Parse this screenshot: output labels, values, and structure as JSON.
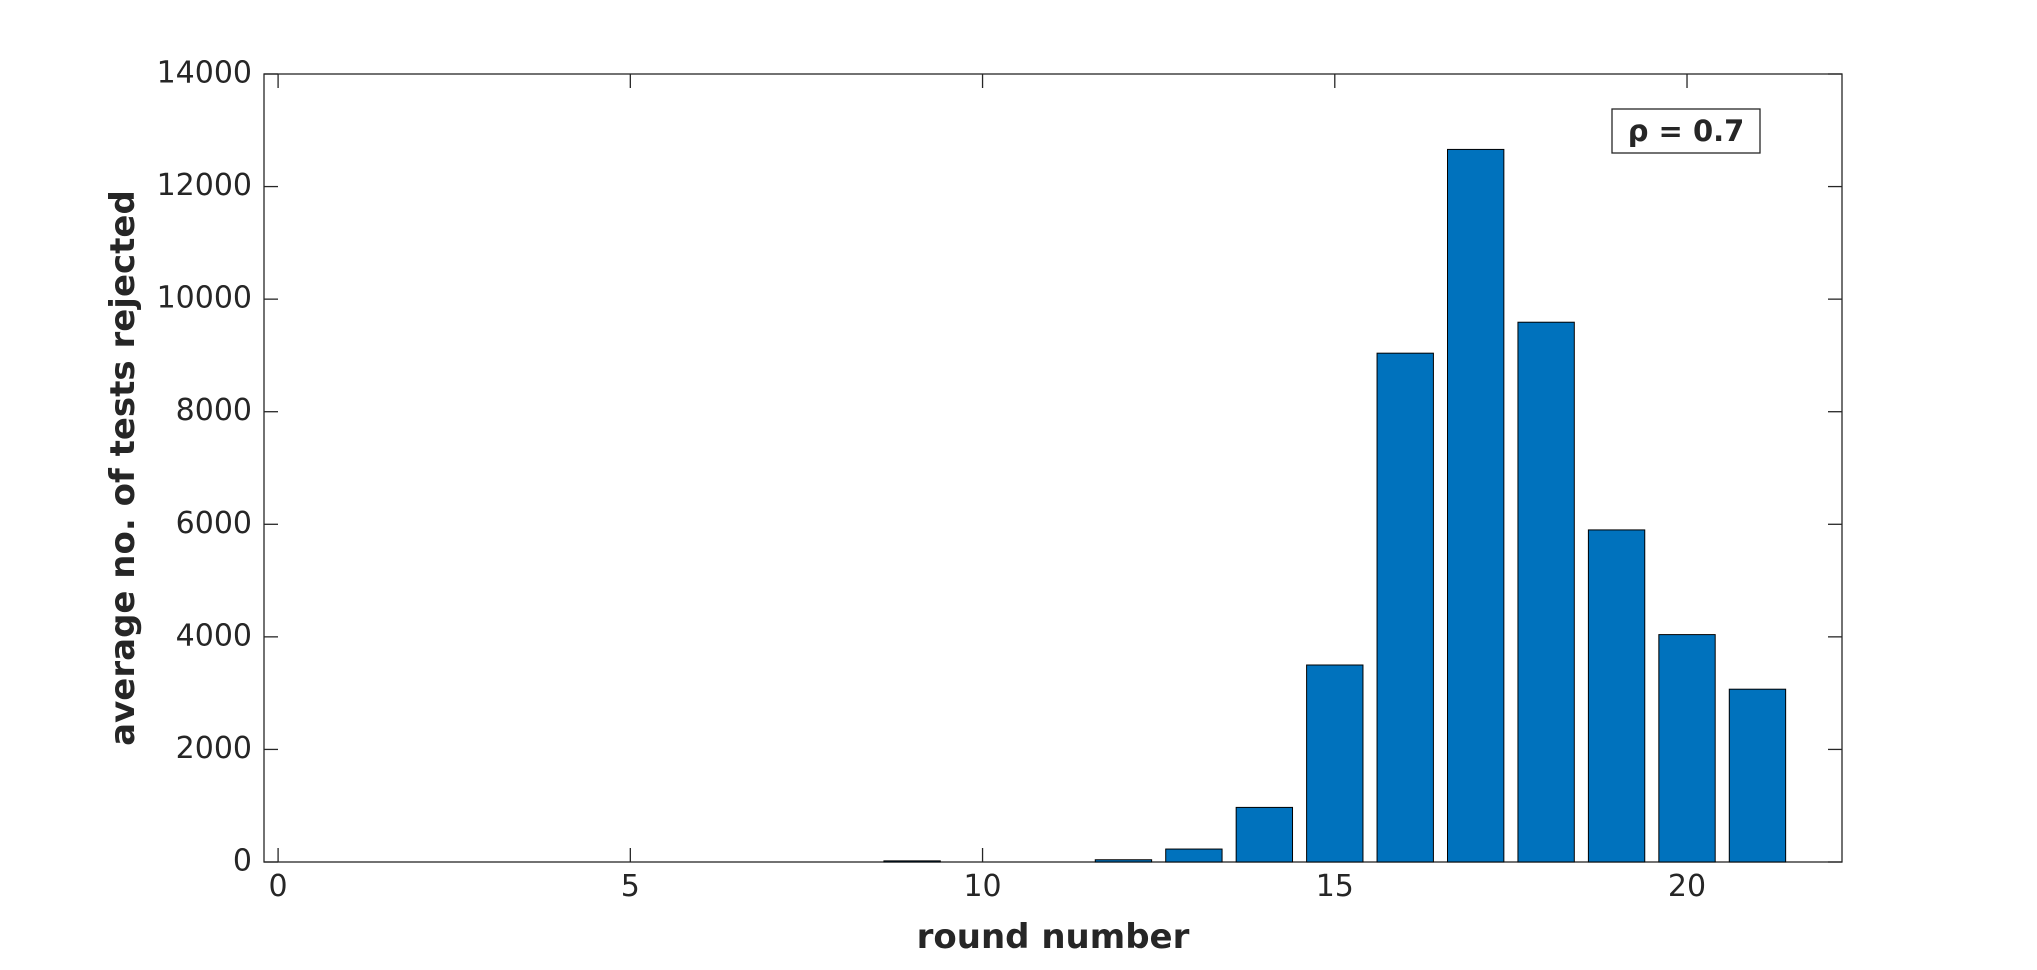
{
  "chart_data": {
    "type": "bar",
    "x": [
      1,
      2,
      3,
      4,
      5,
      6,
      7,
      8,
      9,
      10,
      11,
      12,
      13,
      14,
      15,
      16,
      17,
      18,
      19,
      20,
      21
    ],
    "values": [
      0,
      0,
      0,
      0,
      0,
      0,
      0,
      0,
      20,
      0,
      0,
      40,
      230,
      970,
      3500,
      9040,
      12660,
      9590,
      5900,
      4040,
      3070
    ],
    "color": "#0072bd",
    "xlabel": "round number",
    "ylabel": "average no. of tests rejected",
    "annotation": "ρ = 0.7",
    "xlim": [
      -0.2,
      22.2
    ],
    "xticks": [
      0,
      5,
      10,
      15,
      20
    ],
    "ylim": [
      0,
      14000
    ],
    "yticks": [
      0,
      2000,
      4000,
      6000,
      8000,
      10000,
      12000,
      14000
    ],
    "grid": false
  }
}
